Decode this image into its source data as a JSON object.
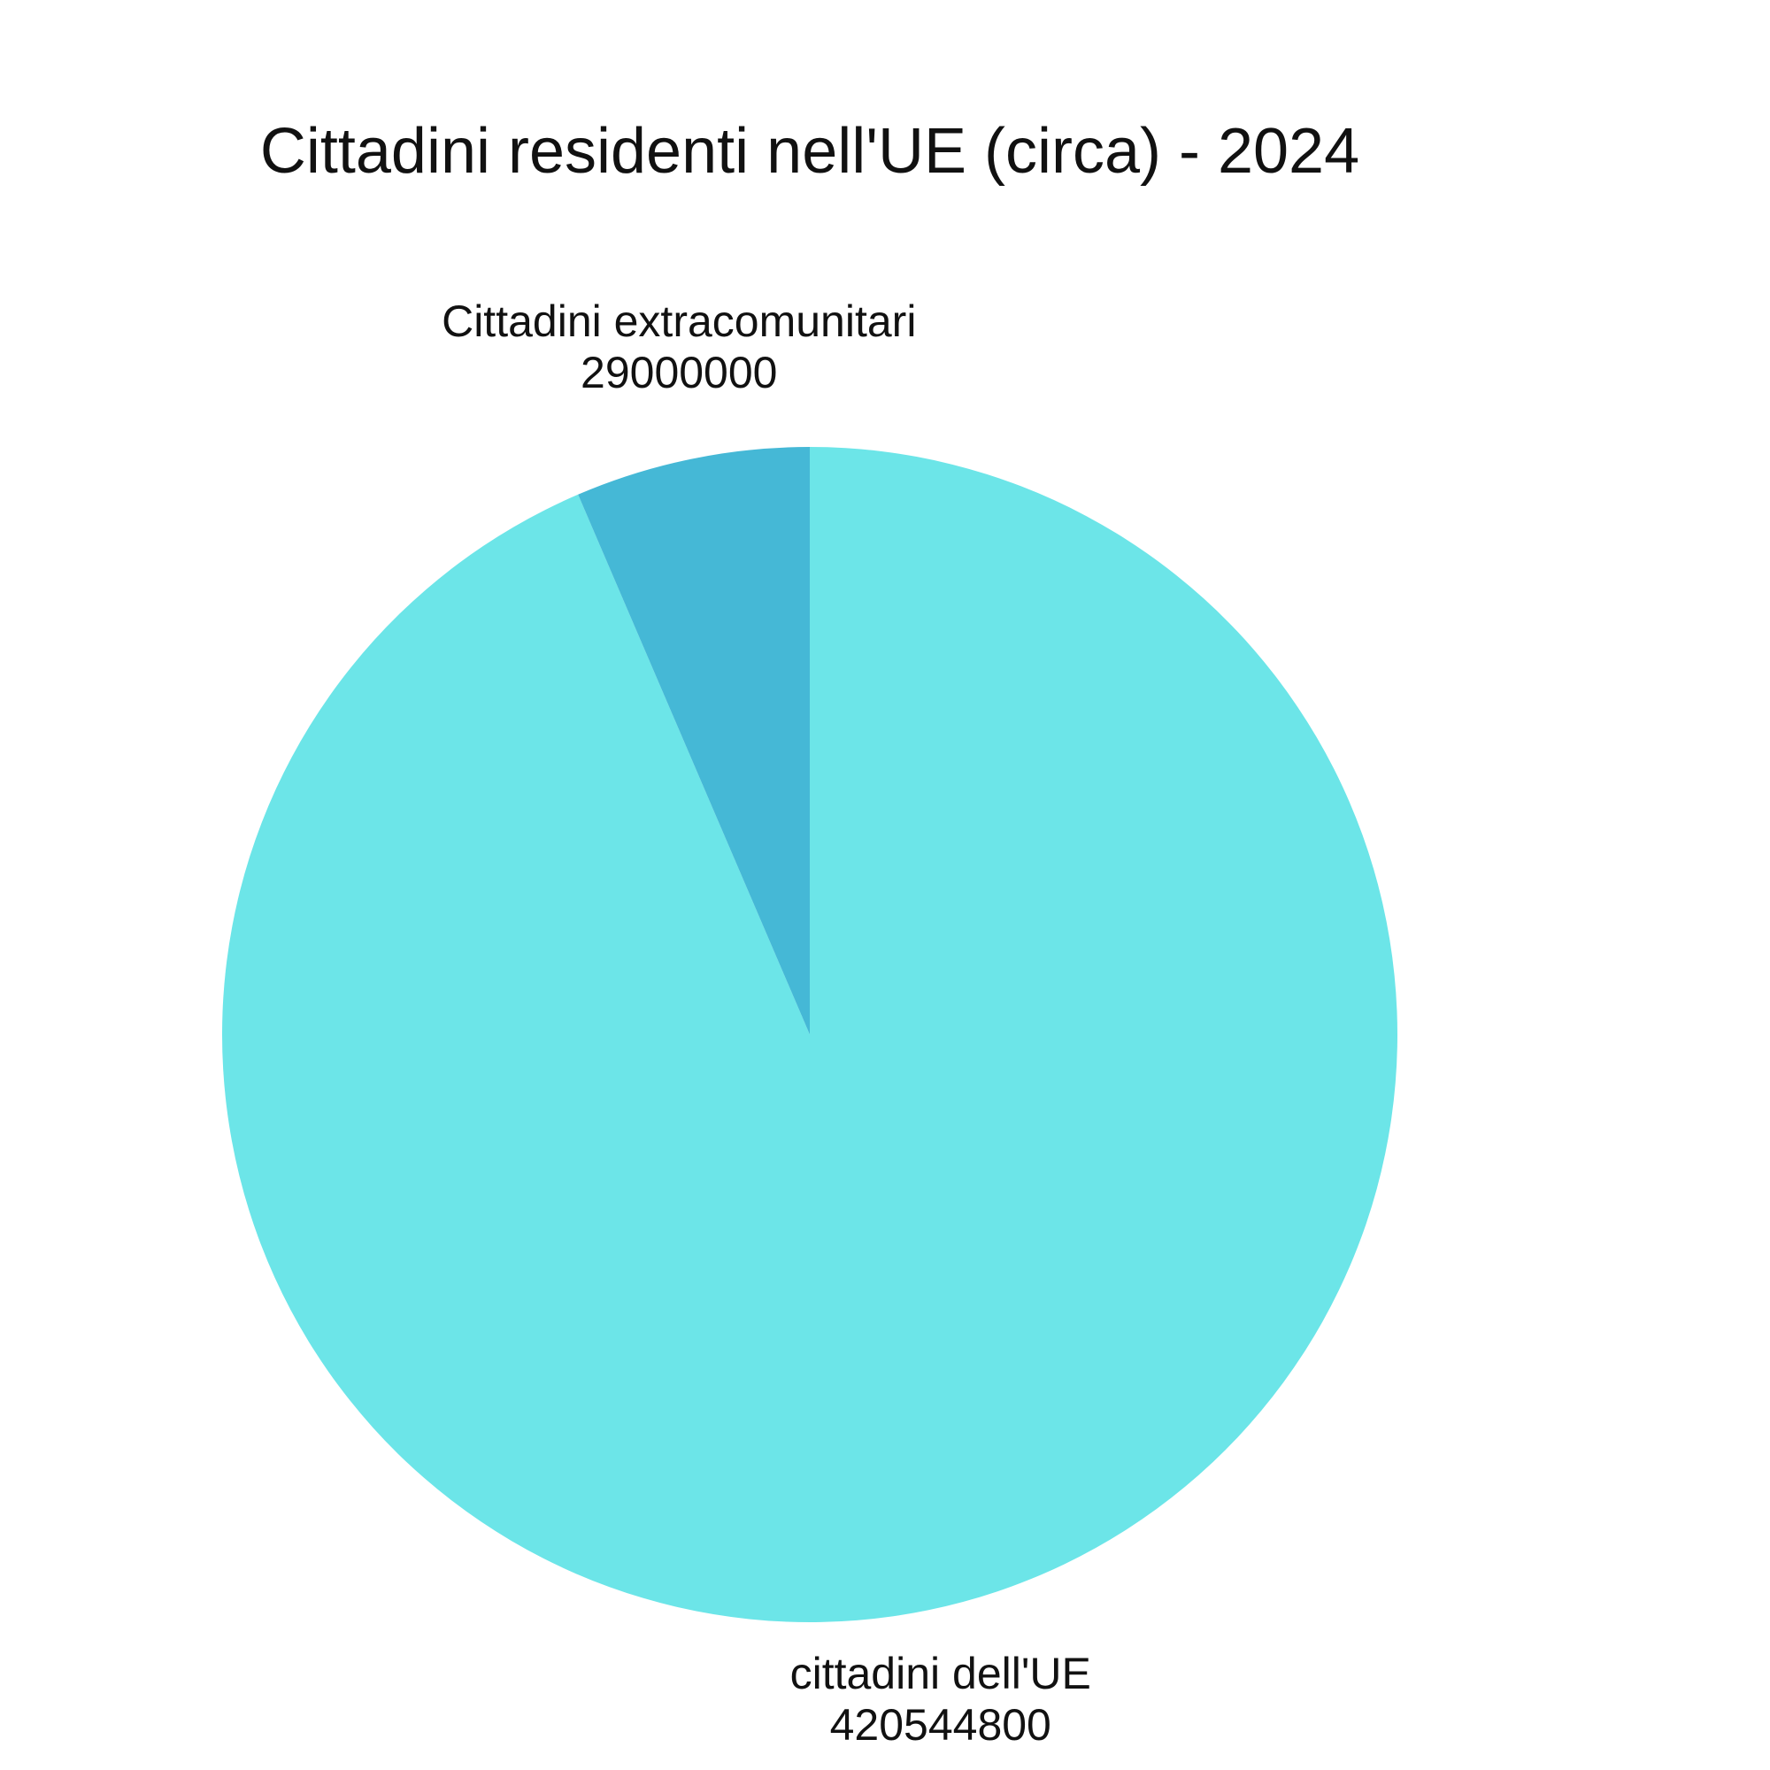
{
  "chart_data": {
    "type": "pie",
    "title": "Cittadini residenti nell'UE (circa) - 2024",
    "categories": [
      "cittadini dell'UE",
      "Cittadini extracomunitari"
    ],
    "values": [
      420544800,
      29000000
    ],
    "colors": [
      "#6ce5e8",
      "#45b8d6"
    ]
  }
}
